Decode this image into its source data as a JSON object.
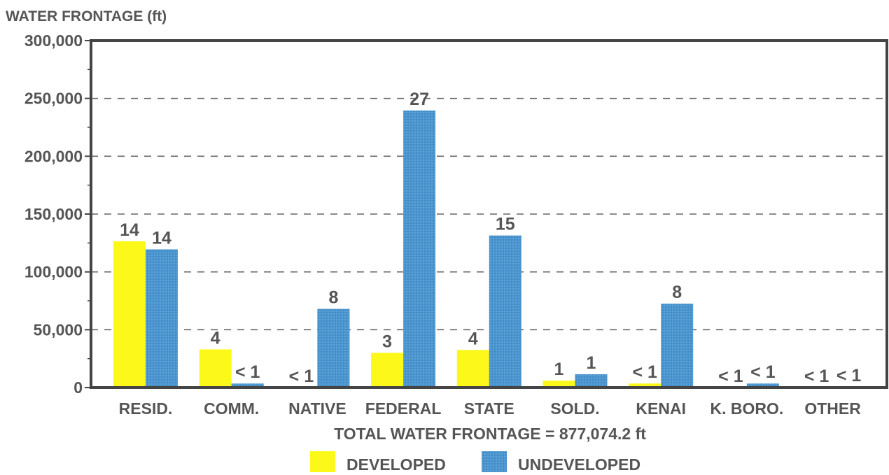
{
  "chart_data": {
    "type": "bar",
    "ylabel": "WATER FRONTAGE (ft)",
    "xlabel": "TOTAL WATER FRONTAGE = 877,074.2 ft",
    "ylim": [
      0,
      300000
    ],
    "yticks": [
      0,
      50000,
      100000,
      150000,
      200000,
      250000,
      300000
    ],
    "ytick_labels": [
      "0",
      "50,000",
      "100,000",
      "150,000",
      "200,000",
      "250,000",
      "300,000"
    ],
    "grid": "dashed horizontal",
    "legend_position": "bottom-center",
    "categories": [
      "RESID.",
      "COMM.",
      "NATIVE",
      "FEDERAL",
      "STATE",
      "SOLD.",
      "KENAI",
      "K. BORO.",
      "OTHER"
    ],
    "series": [
      {
        "name": "DEVELOPED",
        "color": "#fbf81a",
        "values": [
          126500,
          33000,
          0,
          30000,
          32500,
          6000,
          3500,
          0,
          0
        ],
        "labels": [
          "14",
          "4",
          "< 1",
          "3",
          "4",
          "1",
          "< 1",
          "< 1",
          "< 1"
        ]
      },
      {
        "name": "UNDEVELOPED",
        "color": "#4a95cf",
        "values": [
          119500,
          3500,
          68000,
          239500,
          131500,
          11500,
          72500,
          3500,
          500
        ],
        "labels": [
          "14",
          "< 1",
          "8",
          "27",
          "15",
          "1",
          "8",
          "< 1",
          "< 1"
        ]
      }
    ]
  }
}
